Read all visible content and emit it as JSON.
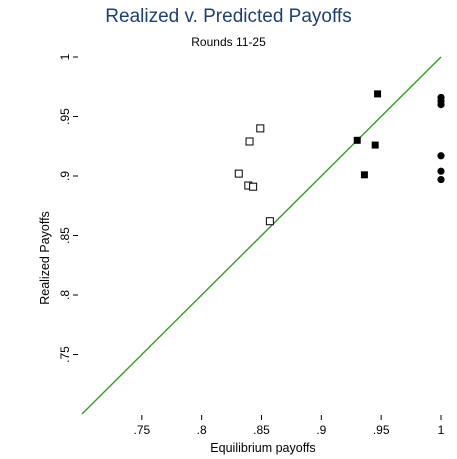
{
  "chart_data": {
    "type": "scatter",
    "title": "Realized v. Predicted Payoffs",
    "subtitle": "Rounds 11-25",
    "xlabel": "Equilibrium payoffs",
    "ylabel": "Realized Payoffs",
    "xlim": [
      0.7,
      1.0
    ],
    "ylim": [
      0.7,
      1.0
    ],
    "x_ticks": [
      0.75,
      0.8,
      0.85,
      0.9,
      0.95,
      1
    ],
    "x_tick_labels": [
      ".75",
      ".8",
      ".85",
      ".9",
      ".95",
      "1"
    ],
    "y_ticks": [
      0.75,
      0.8,
      0.85,
      0.9,
      0.95,
      1
    ],
    "y_tick_labels": [
      ".75",
      ".8",
      ".85",
      ".9",
      ".95",
      "1"
    ],
    "grid": false,
    "reference_line": {
      "type": "y=x",
      "color": "#3a9a2a"
    },
    "series": [
      {
        "marker": "hollow-square",
        "points": [
          {
            "x": 0.84,
            "y": 0.929
          },
          {
            "x": 0.849,
            "y": 0.94
          },
          {
            "x": 0.831,
            "y": 0.902
          },
          {
            "x": 0.839,
            "y": 0.892
          },
          {
            "x": 0.843,
            "y": 0.891
          },
          {
            "x": 0.857,
            "y": 0.862
          }
        ]
      },
      {
        "marker": "filled-square",
        "points": [
          {
            "x": 0.93,
            "y": 0.93
          },
          {
            "x": 0.945,
            "y": 0.926
          },
          {
            "x": 0.936,
            "y": 0.901
          },
          {
            "x": 0.947,
            "y": 0.969
          }
        ]
      },
      {
        "marker": "filled-circle",
        "points": [
          {
            "x": 1.0,
            "y": 0.966
          },
          {
            "x": 1.0,
            "y": 0.963
          },
          {
            "x": 1.0,
            "y": 0.96
          },
          {
            "x": 1.0,
            "y": 0.917
          },
          {
            "x": 1.0,
            "y": 0.904
          },
          {
            "x": 1.0,
            "y": 0.897
          }
        ]
      }
    ]
  }
}
